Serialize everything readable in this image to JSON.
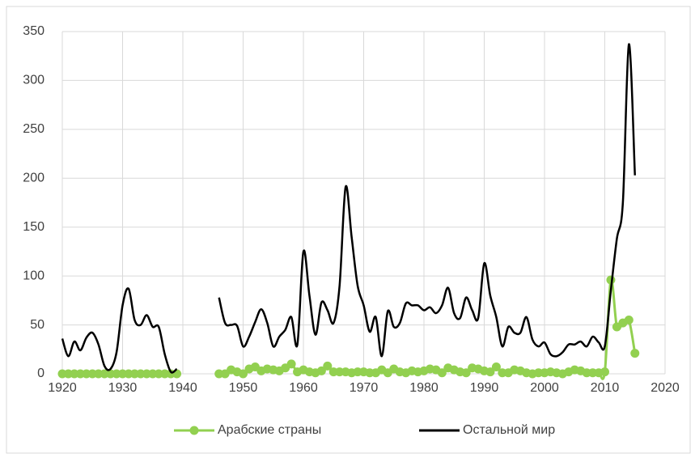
{
  "chart_data": {
    "type": "line",
    "x": [
      1920,
      1921,
      1922,
      1923,
      1924,
      1925,
      1926,
      1927,
      1928,
      1929,
      1930,
      1931,
      1932,
      1933,
      1934,
      1935,
      1936,
      1937,
      1938,
      1939,
      1940,
      1941,
      1942,
      1943,
      1944,
      1945,
      1946,
      1947,
      1948,
      1949,
      1950,
      1951,
      1952,
      1953,
      1954,
      1955,
      1956,
      1957,
      1958,
      1959,
      1960,
      1961,
      1962,
      1963,
      1964,
      1965,
      1966,
      1967,
      1968,
      1969,
      1970,
      1971,
      1972,
      1973,
      1974,
      1975,
      1976,
      1977,
      1978,
      1979,
      1980,
      1981,
      1982,
      1983,
      1984,
      1985,
      1986,
      1987,
      1988,
      1989,
      1990,
      1991,
      1992,
      1993,
      1994,
      1995,
      1996,
      1997,
      1998,
      1999,
      2000,
      2001,
      2002,
      2003,
      2004,
      2005,
      2006,
      2007,
      2008,
      2009,
      2010,
      2011,
      2012,
      2013,
      2014,
      2015
    ],
    "series": [
      {
        "name": "Арабские страны",
        "color": "#92d050",
        "marker": true,
        "values": [
          0,
          0,
          0,
          0,
          0,
          0,
          0,
          0,
          0,
          0,
          0,
          0,
          0,
          0,
          0,
          0,
          0,
          0,
          0,
          0,
          null,
          null,
          null,
          null,
          null,
          null,
          0,
          0,
          4,
          2,
          0,
          5,
          7,
          3,
          5,
          4,
          3,
          6,
          10,
          2,
          4,
          2,
          1,
          3,
          8,
          2,
          2,
          2,
          1,
          2,
          2,
          1,
          1,
          4,
          1,
          5,
          2,
          1,
          3,
          2,
          3,
          5,
          4,
          1,
          6,
          4,
          2,
          1,
          6,
          5,
          3,
          2,
          7,
          1,
          1,
          4,
          3,
          1,
          0,
          1,
          1,
          2,
          1,
          0,
          2,
          4,
          3,
          1,
          1,
          1,
          2,
          96,
          48,
          52,
          55,
          21
        ]
      },
      {
        "name": "Остальной мир",
        "color": "#000000",
        "marker": false,
        "values": [
          36,
          18,
          33,
          24,
          37,
          42,
          30,
          8,
          5,
          22,
          70,
          87,
          55,
          50,
          60,
          48,
          48,
          20,
          2,
          5,
          null,
          null,
          null,
          null,
          null,
          null,
          78,
          52,
          50,
          49,
          28,
          38,
          53,
          66,
          52,
          28,
          38,
          45,
          58,
          30,
          125,
          80,
          40,
          73,
          65,
          52,
          90,
          191,
          140,
          90,
          70,
          43,
          58,
          18,
          64,
          48,
          52,
          72,
          70,
          70,
          65,
          68,
          62,
          70,
          88,
          62,
          57,
          78,
          65,
          57,
          113,
          80,
          58,
          28,
          48,
          42,
          42,
          58,
          35,
          28,
          32,
          20,
          18,
          22,
          30,
          30,
          33,
          28,
          38,
          32,
          28,
          85,
          138,
          175,
          337,
          203
        ]
      }
    ],
    "xlim": [
      1920,
      2020
    ],
    "xticks": [
      1920,
      1930,
      1940,
      1950,
      1960,
      1970,
      1980,
      1990,
      2000,
      2010,
      2020
    ],
    "ylim": [
      0,
      350
    ],
    "yticks": [
      0,
      50,
      100,
      150,
      200,
      250,
      300,
      350
    ],
    "grid": true,
    "legend": "bottom"
  }
}
